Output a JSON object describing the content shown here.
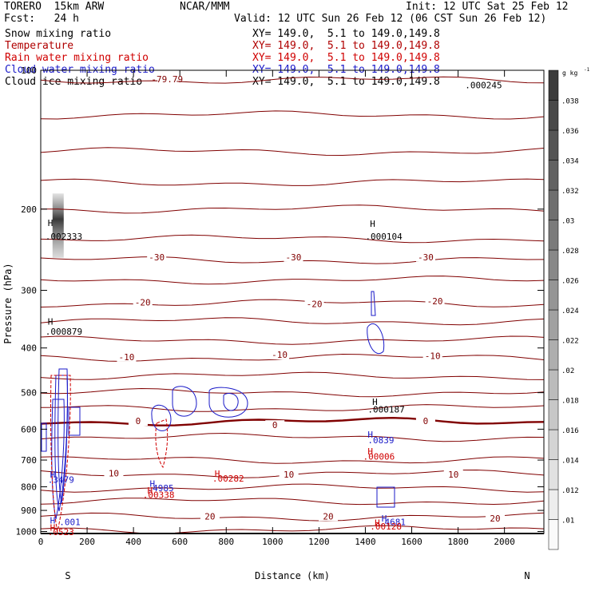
{
  "header": {
    "model": "TORERO  15km ARW",
    "center": "NCAR/MMM",
    "init": "Init: 12 UTC Sat 25 Feb 12",
    "fcst": "Fcst:   24 h",
    "valid": "Valid: 12 UTC Sun 26 Feb 12 (06 CST Sun 26 Feb 12)"
  },
  "legend": [
    {
      "label": "Snow mixing ratio",
      "xy": "XY= 149.0,  5.1 to 149.0,149.8",
      "color": "#000000"
    },
    {
      "label": "Temperature",
      "xy": "XY= 149.0,  5.1 to 149.0,149.8",
      "color": "#b00000"
    },
    {
      "label": "Rain water mixing ratio",
      "xy": "XY= 149.0,  5.1 to 149.0,149.8",
      "color": "#d00000"
    },
    {
      "label": "Cloud water mixing ratio",
      "xy": "XY= 149.0,  5.1 to 149.0,149.8",
      "color": "#1a1ac8"
    },
    {
      "label": "Cloud ice mixing ratio",
      "xy": "XY= 149.0,  5.1 to 149.0,149.8",
      "color": "#000000"
    }
  ],
  "colors": {
    "temperature": "#800000",
    "zero_isotherm": "#800000",
    "cloud_water": "#1a1ac8",
    "rain_water": "#d00000",
    "text": "#000000"
  },
  "chart_data": {
    "type": "cross-section",
    "xlabel": "Distance (km)",
    "ylabel": "Pressure (hPa)",
    "xlim": [
      0,
      2170
    ],
    "ylim": [
      1010,
      100
    ],
    "y_log_scale": true,
    "x_ticks": [
      0,
      200,
      400,
      600,
      800,
      1000,
      1200,
      1400,
      1600,
      1800,
      2000
    ],
    "y_ticks": [
      100,
      200,
      300,
      400,
      500,
      600,
      700,
      800,
      900,
      1000
    ],
    "x_ends": {
      "left": "S",
      "right": "N"
    },
    "colorbar": {
      "unit": "g kg",
      "unit_exponent": "-1",
      "ticks": [
        ".01",
        ".012",
        ".014",
        ".016",
        ".018",
        ".02",
        ".022",
        ".024",
        ".026",
        ".028",
        ".03",
        ".032",
        ".034",
        ".036",
        ".038"
      ]
    },
    "isotherm_labels": [
      {
        "text": "-79.79",
        "x": 545,
        "p": 105
      },
      {
        "text": "-30",
        "x": 500,
        "p": 255
      },
      {
        "text": "-30",
        "x": 1090,
        "p": 255
      },
      {
        "text": "-30",
        "x": 1660,
        "p": 255
      },
      {
        "text": "-20",
        "x": 440,
        "p": 320
      },
      {
        "text": "-20",
        "x": 1180,
        "p": 322
      },
      {
        "text": "-20",
        "x": 1700,
        "p": 318
      },
      {
        "text": "-10",
        "x": 370,
        "p": 420
      },
      {
        "text": "-10",
        "x": 1030,
        "p": 415
      },
      {
        "text": "-10",
        "x": 1690,
        "p": 418
      },
      {
        "text": "0",
        "x": 420,
        "p": 578
      },
      {
        "text": "0",
        "x": 1010,
        "p": 590
      },
      {
        "text": "0",
        "x": 1660,
        "p": 578
      },
      {
        "text": "10",
        "x": 315,
        "p": 750
      },
      {
        "text": "10",
        "x": 1070,
        "p": 755
      },
      {
        "text": "10",
        "x": 1780,
        "p": 755
      },
      {
        "text": "20",
        "x": 730,
        "p": 930
      },
      {
        "text": "20",
        "x": 1240,
        "p": 930
      },
      {
        "text": "20",
        "x": 1960,
        "p": 940
      }
    ],
    "maxima_labels": [
      {
        "text": "H",
        "x": 30,
        "p": 215,
        "color": "#000000"
      },
      {
        "text": ".002333",
        "x": 20,
        "p": 230,
        "color": "#000000"
      },
      {
        "text": "H",
        "x": 1420,
        "p": 216,
        "color": "#000000"
      },
      {
        "text": ".000104",
        "x": 1400,
        "p": 230,
        "color": "#000000"
      },
      {
        "text": "H",
        "x": 30,
        "p": 352,
        "color": "#000000"
      },
      {
        "text": ".000879",
        "x": 20,
        "p": 370,
        "color": "#000000"
      },
      {
        "text": ".000245",
        "x": 1830,
        "p": 108,
        "color": "#000000"
      },
      {
        "text": "H",
        "x": 1430,
        "p": 525,
        "color": "#000000"
      },
      {
        "text": ".000187",
        "x": 1410,
        "p": 545,
        "color": "#000000"
      },
      {
        "text": "H",
        "x": 1410,
        "p": 618,
        "color": "#1a1ac8"
      },
      {
        "text": ".0839",
        "x": 1410,
        "p": 636,
        "color": "#1a1ac8"
      },
      {
        "text": "H",
        "x": 1410,
        "p": 672,
        "color": "#d00000"
      },
      {
        "text": ".00006",
        "x": 1390,
        "p": 690,
        "color": "#d00000"
      },
      {
        "text": "H",
        "x": 40,
        "p": 755,
        "color": "#1a1ac8"
      },
      {
        "text": ".3479",
        "x": 30,
        "p": 775,
        "color": "#1a1ac8"
      },
      {
        "text": "H",
        "x": 470,
        "p": 790,
        "color": "#1a1ac8"
      },
      {
        "text": ".4985",
        "x": 460,
        "p": 808,
        "color": "#1a1ac8"
      },
      {
        "text": "H",
        "x": 460,
        "p": 818,
        "color": "#d00000"
      },
      {
        "text": ".00338",
        "x": 440,
        "p": 835,
        "color": "#d00000"
      },
      {
        "text": "H",
        "x": 750,
        "p": 752,
        "color": "#d00000"
      },
      {
        "text": ".00282",
        "x": 740,
        "p": 770,
        "color": "#d00000"
      },
      {
        "text": "H",
        "x": 40,
        "p": 950,
        "color": "#1a1ac8"
      },
      {
        "text": ".001",
        "x": 80,
        "p": 958,
        "color": "#1a1ac8"
      },
      {
        "text": "H",
        "x": 40,
        "p": 985,
        "color": "#d00000"
      },
      {
        "text": ".0523",
        "x": 30,
        "p": 1005,
        "color": "#d00000"
      },
      {
        "text": "H",
        "x": 1470,
        "p": 940,
        "color": "#1a1ac8"
      },
      {
        "text": ".4681",
        "x": 1460,
        "p": 958,
        "color": "#1a1ac8"
      },
      {
        "text": "H",
        "x": 1440,
        "p": 960,
        "color": "#d00000"
      },
      {
        "text": ".00128",
        "x": 1420,
        "p": 978,
        "color": "#d00000"
      }
    ],
    "isotherm_lines_p": [
      105,
      125,
      150,
      175,
      200,
      232,
      258,
      285,
      320,
      350,
      385,
      420,
      460,
      500,
      540,
      578,
      625,
      700,
      750,
      805,
      860,
      930,
      990
    ],
    "snow_shading": {
      "x": 75,
      "p_top": 185,
      "p_bottom": 255,
      "max": 0.038
    }
  }
}
